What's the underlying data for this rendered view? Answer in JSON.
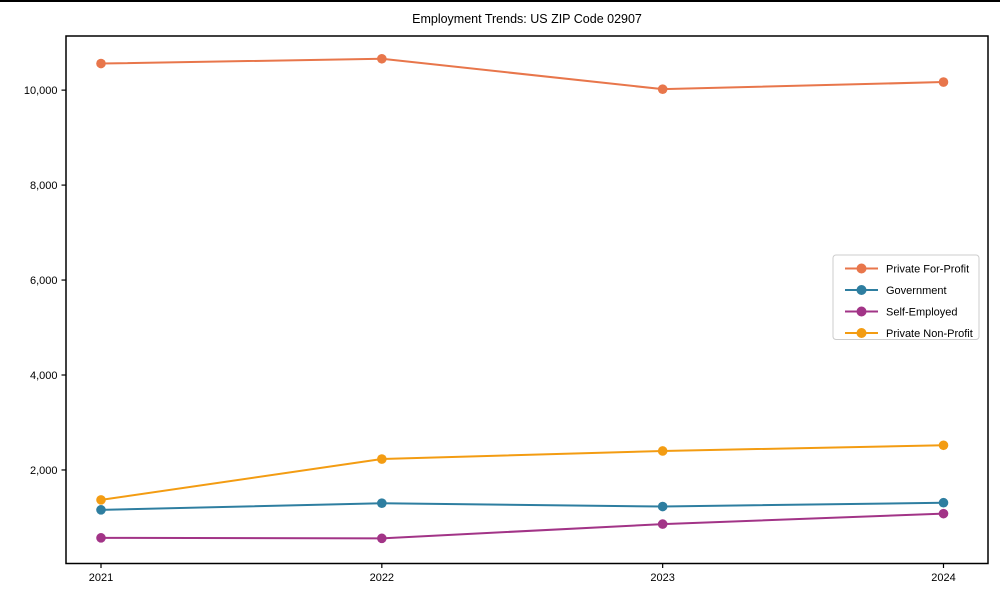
{
  "chart_data": {
    "type": "line",
    "title": "Employment Trends: US ZIP Code 02907",
    "xlabel": "",
    "ylabel": "",
    "x": [
      "2021",
      "2022",
      "2023",
      "2024"
    ],
    "series": [
      {
        "name": "Private For-Profit",
        "color": "#E8764B",
        "values": [
          10560,
          10660,
          10020,
          10170
        ]
      },
      {
        "name": "Government",
        "color": "#2E7EA0",
        "values": [
          1160,
          1300,
          1230,
          1310
        ]
      },
      {
        "name": "Self-Employed",
        "color": "#A23487",
        "values": [
          570,
          560,
          860,
          1080
        ]
      },
      {
        "name": "Private Non-Profit",
        "color": "#F39C12",
        "values": [
          1370,
          2230,
          2400,
          2520
        ]
      }
    ],
    "ylim": [
      30,
      11140
    ],
    "yticks": [
      2000,
      4000,
      6000,
      8000,
      10000
    ],
    "ytick_labels": [
      "2,000",
      "4,000",
      "6,000",
      "8,000",
      "10,000"
    ],
    "grid": false,
    "legend": {
      "position": "center-right",
      "frame_color": "#cccccc",
      "entries": [
        "Private For-Profit",
        "Government",
        "Self-Employed",
        "Private Non-Profit"
      ]
    },
    "axis_color": "#000000"
  }
}
